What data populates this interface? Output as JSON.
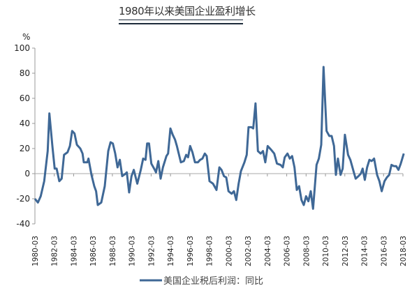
{
  "title": "1980年以来美国企业盈利增长",
  "chart_data": {
    "type": "line",
    "title": "1980年以来美国企业盈利增长",
    "ylabel": "%",
    "xlabel": "",
    "ylim": [
      -40,
      100
    ],
    "yticks": [
      -40,
      -20,
      0,
      20,
      40,
      60,
      80,
      100
    ],
    "xticks": [
      "1980-03",
      "1982-03",
      "1984-03",
      "1986-03",
      "1988-03",
      "1990-03",
      "1992-03",
      "1994-03",
      "1996-03",
      "1998-03",
      "2000-03",
      "2002-03",
      "2004-03",
      "2006-03",
      "2008-03",
      "2010-03",
      "2012-03",
      "2014-03",
      "2016-03",
      "2018-03"
    ],
    "grid": false,
    "legend": "bottom",
    "color": "#3f6896",
    "series": [
      {
        "name": "美国企业税后利润：同比",
        "points": [
          [
            1980.17,
            -20
          ],
          [
            1980.48,
            -23
          ],
          [
            1980.77,
            -18
          ],
          [
            1981.13,
            -6
          ],
          [
            1981.49,
            18
          ],
          [
            1981.66,
            48
          ],
          [
            1981.97,
            22
          ],
          [
            1982.21,
            4
          ],
          [
            1982.41,
            4
          ],
          [
            1982.69,
            -6
          ],
          [
            1982.93,
            -4
          ],
          [
            1983.18,
            15
          ],
          [
            1983.54,
            17
          ],
          [
            1983.78,
            22
          ],
          [
            1984.01,
            34
          ],
          [
            1984.26,
            32
          ],
          [
            1984.5,
            23
          ],
          [
            1984.86,
            20
          ],
          [
            1985.09,
            16
          ],
          [
            1985.22,
            9
          ],
          [
            1985.58,
            9
          ],
          [
            1985.7,
            12
          ],
          [
            1986.01,
            -1
          ],
          [
            1986.3,
            -10
          ],
          [
            1986.49,
            -14
          ],
          [
            1986.66,
            -25
          ],
          [
            1987.02,
            -23
          ],
          [
            1987.38,
            -10
          ],
          [
            1987.74,
            18
          ],
          [
            1987.98,
            25
          ],
          [
            1988.22,
            24
          ],
          [
            1988.46,
            16
          ],
          [
            1988.7,
            5
          ],
          [
            1988.94,
            11
          ],
          [
            1989.18,
            -2
          ],
          [
            1989.54,
            0
          ],
          [
            1989.66,
            1
          ],
          [
            1989.9,
            -15
          ],
          [
            1990.14,
            -2
          ],
          [
            1990.38,
            3
          ],
          [
            1990.74,
            -8
          ],
          [
            1991.1,
            3
          ],
          [
            1991.35,
            12
          ],
          [
            1991.59,
            11
          ],
          [
            1991.76,
            24
          ],
          [
            1991.95,
            24
          ],
          [
            1992.19,
            8
          ],
          [
            1992.55,
            3
          ],
          [
            1992.67,
            1
          ],
          [
            1992.91,
            10
          ],
          [
            1993.15,
            -4
          ],
          [
            1993.39,
            5
          ],
          [
            1993.75,
            14
          ],
          [
            1993.92,
            16
          ],
          [
            1994.16,
            36
          ],
          [
            1994.4,
            31
          ],
          [
            1994.64,
            27
          ],
          [
            1994.83,
            22
          ],
          [
            1995.24,
            9
          ],
          [
            1995.55,
            10
          ],
          [
            1995.79,
            15
          ],
          [
            1995.98,
            13
          ],
          [
            1996.2,
            22
          ],
          [
            1996.44,
            17
          ],
          [
            1996.7,
            9
          ],
          [
            1996.99,
            9
          ],
          [
            1997.23,
            11
          ],
          [
            1997.47,
            12
          ],
          [
            1997.71,
            16
          ],
          [
            1997.91,
            14
          ],
          [
            1998.2,
            -6
          ],
          [
            1998.56,
            -8
          ],
          [
            1998.92,
            -13
          ],
          [
            1999.21,
            5
          ],
          [
            1999.44,
            3
          ],
          [
            1999.69,
            -2
          ],
          [
            1999.93,
            -3
          ],
          [
            2000.16,
            -14
          ],
          [
            2000.48,
            -16
          ],
          [
            2000.72,
            -14
          ],
          [
            2000.96,
            -21
          ],
          [
            2001.2,
            -8
          ],
          [
            2001.44,
            2
          ],
          [
            2001.8,
            9
          ],
          [
            2002.04,
            15
          ],
          [
            2002.23,
            37
          ],
          [
            2002.52,
            37
          ],
          [
            2002.71,
            36
          ],
          [
            2002.95,
            56
          ],
          [
            2003.19,
            18
          ],
          [
            2003.48,
            16
          ],
          [
            2003.72,
            18
          ],
          [
            2003.96,
            9
          ],
          [
            2004.2,
            22
          ],
          [
            2004.56,
            19
          ],
          [
            2004.88,
            16
          ],
          [
            2005.16,
            8
          ],
          [
            2005.53,
            7
          ],
          [
            2005.77,
            5
          ],
          [
            2005.96,
            13
          ],
          [
            2006.25,
            16
          ],
          [
            2006.49,
            12
          ],
          [
            2006.73,
            14
          ],
          [
            2006.97,
            5
          ],
          [
            2007.21,
            -13
          ],
          [
            2007.45,
            -10
          ],
          [
            2007.69,
            -21
          ],
          [
            2007.93,
            -25
          ],
          [
            2008.17,
            -18
          ],
          [
            2008.41,
            -22
          ],
          [
            2008.65,
            -14
          ],
          [
            2008.89,
            -28
          ],
          [
            2009.25,
            7
          ],
          [
            2009.49,
            12
          ],
          [
            2009.73,
            23
          ],
          [
            2009.97,
            85
          ],
          [
            2010.28,
            34
          ],
          [
            2010.57,
            30
          ],
          [
            2010.81,
            30
          ],
          [
            2011.05,
            22
          ],
          [
            2011.25,
            -1
          ],
          [
            2011.46,
            12
          ],
          [
            2011.73,
            -1
          ],
          [
            2011.95,
            4
          ],
          [
            2012.18,
            31
          ],
          [
            2012.5,
            15
          ],
          [
            2012.74,
            11
          ],
          [
            2013.1,
            1
          ],
          [
            2013.29,
            -4
          ],
          [
            2013.58,
            -2
          ],
          [
            2013.82,
            0
          ],
          [
            2014.01,
            4
          ],
          [
            2014.23,
            -5
          ],
          [
            2014.47,
            5
          ],
          [
            2014.71,
            11
          ],
          [
            2014.94,
            10
          ],
          [
            2015.19,
            12
          ],
          [
            2015.5,
            -1
          ],
          [
            2015.74,
            -6
          ],
          [
            2015.98,
            -14
          ],
          [
            2016.27,
            -6
          ],
          [
            2016.51,
            -3
          ],
          [
            2016.75,
            -1
          ],
          [
            2016.99,
            7
          ],
          [
            2017.23,
            6
          ],
          [
            2017.47,
            6
          ],
          [
            2017.71,
            3
          ],
          [
            2017.95,
            8
          ],
          [
            2018.26,
            16
          ]
        ]
      }
    ]
  }
}
